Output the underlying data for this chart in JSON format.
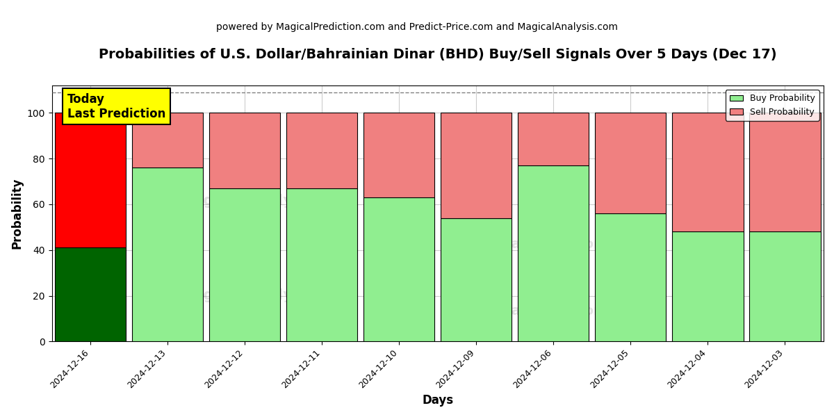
{
  "title": "Probabilities of U.S. Dollar/Bahrainian Dinar (BHD) Buy/Sell Signals Over 5 Days (Dec 17)",
  "subtitle": "powered by MagicalPrediction.com and Predict-Price.com and MagicalAnalysis.com",
  "xlabel": "Days",
  "ylabel": "Probability",
  "categories": [
    "2024-12-16",
    "2024-12-13",
    "2024-12-12",
    "2024-12-11",
    "2024-12-10",
    "2024-12-09",
    "2024-12-06",
    "2024-12-05",
    "2024-12-04",
    "2024-12-03"
  ],
  "buy_values": [
    41,
    76,
    67,
    67,
    63,
    54,
    77,
    56,
    48,
    48
  ],
  "sell_values": [
    59,
    24,
    33,
    33,
    37,
    46,
    23,
    44,
    52,
    52
  ],
  "buy_color_default": "#90EE90",
  "sell_color_default": "#f08080",
  "buy_color_today": "#006400",
  "sell_color_today": "#ff0000",
  "ylim": [
    0,
    112
  ],
  "yticks": [
    0,
    20,
    40,
    60,
    80,
    100
  ],
  "dashed_line_y": 109,
  "legend_buy_label": "Buy Probability",
  "legend_sell_label": "Sell Probability",
  "today_box_text": "Today\nLast Prediction",
  "today_box_color": "#ffff00",
  "background_color": "#ffffff",
  "plot_bg_color": "#ffffff",
  "grid_color": "#cccccc",
  "bar_width": 0.92,
  "title_fontsize": 14,
  "subtitle_fontsize": 10,
  "today_fontsize": 12
}
